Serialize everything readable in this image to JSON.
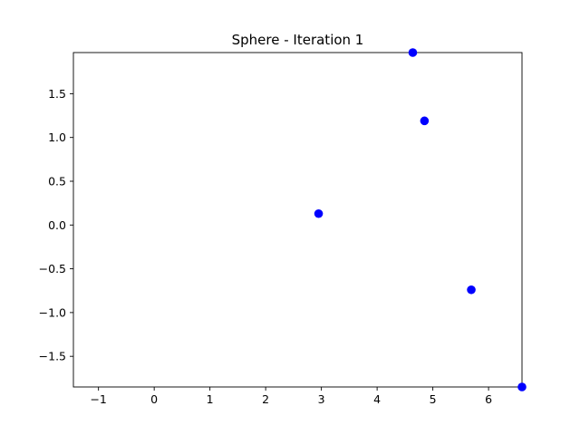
{
  "chart_data": {
    "type": "scatter",
    "title": "Sphere - Iteration 1",
    "xlabel": "",
    "ylabel": "",
    "xlim": [
      -1.45,
      6.6
    ],
    "ylim": [
      -1.85,
      1.97
    ],
    "xticks": [
      -1,
      0,
      1,
      2,
      3,
      4,
      5,
      6
    ],
    "xtick_labels": [
      "−1",
      "0",
      "1",
      "2",
      "3",
      "4",
      "5",
      "6"
    ],
    "yticks": [
      -1.5,
      -1.0,
      -0.5,
      0.0,
      0.5,
      1.0,
      1.5
    ],
    "ytick_labels": [
      "−1.5",
      "−1.0",
      "−0.5",
      "0.0",
      "0.5",
      "1.0",
      "1.5"
    ],
    "grid": false,
    "marker_color": "#0000ff",
    "points": [
      {
        "x": 4.64,
        "y": 1.97
      },
      {
        "x": 4.85,
        "y": 1.19
      },
      {
        "x": 2.95,
        "y": 0.13
      },
      {
        "x": 5.69,
        "y": -0.74
      },
      {
        "x": 6.6,
        "y": -1.85
      }
    ]
  }
}
